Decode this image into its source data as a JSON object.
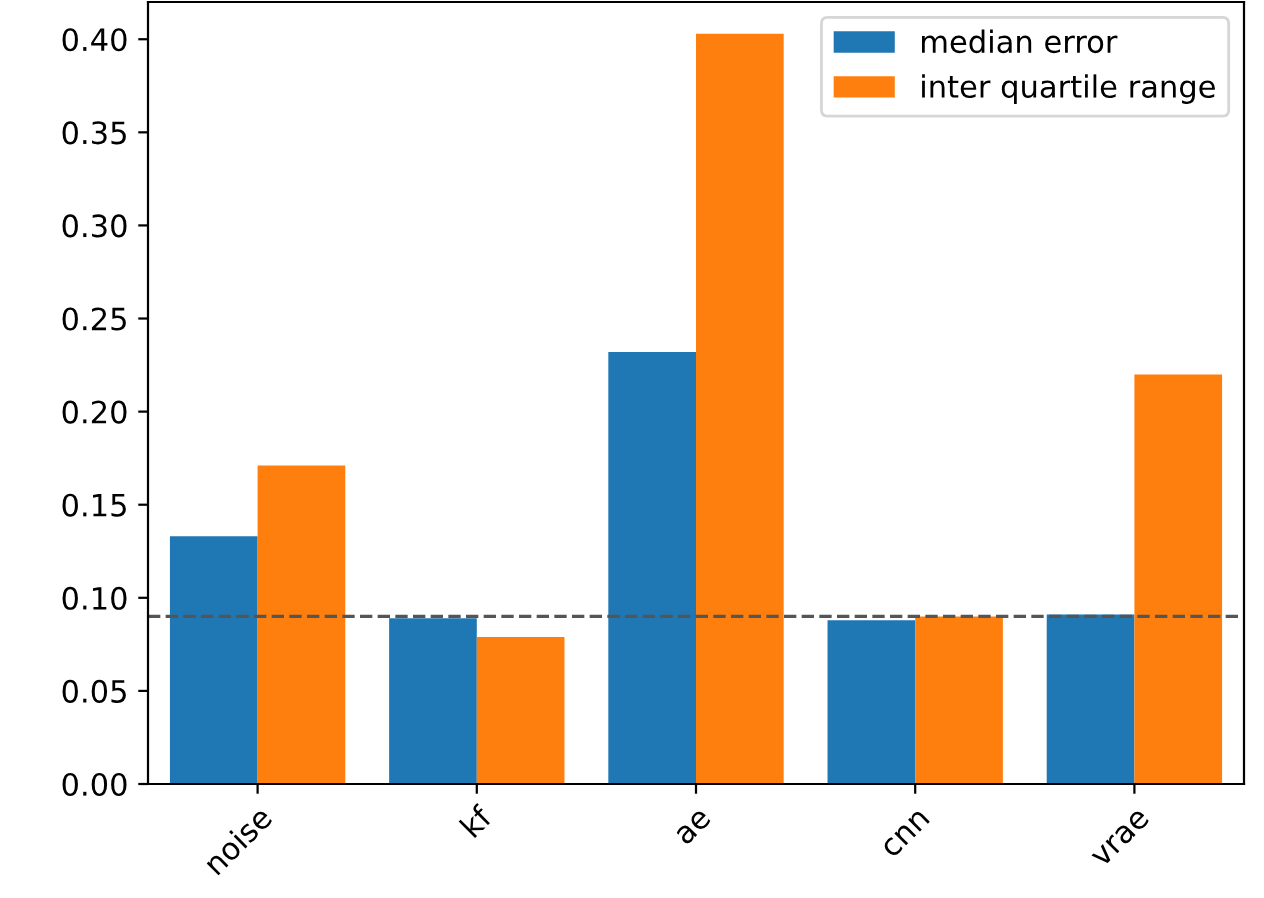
{
  "chart_data": {
    "type": "bar",
    "categories": [
      "noise",
      "kf",
      "ae",
      "cnn",
      "vrae"
    ],
    "series": [
      {
        "name": "median error",
        "color": "#1f77b4",
        "values": [
          0.133,
          0.089,
          0.232,
          0.088,
          0.091
        ]
      },
      {
        "name": "inter quartile range",
        "color": "#ff7f0e",
        "values": [
          0.171,
          0.079,
          0.403,
          0.09,
          0.22
        ]
      }
    ],
    "ylim": [
      0,
      0.42
    ],
    "yticks": [
      {
        "value": 0,
        "label": "0.00"
      },
      {
        "value": 0.05,
        "label": "0.05"
      },
      {
        "value": 0.1,
        "label": "0.10"
      },
      {
        "value": 0.15,
        "label": "0.15"
      },
      {
        "value": 0.2,
        "label": "0.20"
      },
      {
        "value": 0.25,
        "label": "0.25"
      },
      {
        "value": 0.3,
        "label": "0.30"
      },
      {
        "value": 0.35,
        "label": "0.35"
      },
      {
        "value": 0.4,
        "label": "0.40"
      }
    ],
    "ref_lines": [
      {
        "axis": "y",
        "value": 0.09,
        "color": "#555555",
        "line_style": "dashed"
      }
    ],
    "legend": "top right",
    "grid": false
  }
}
